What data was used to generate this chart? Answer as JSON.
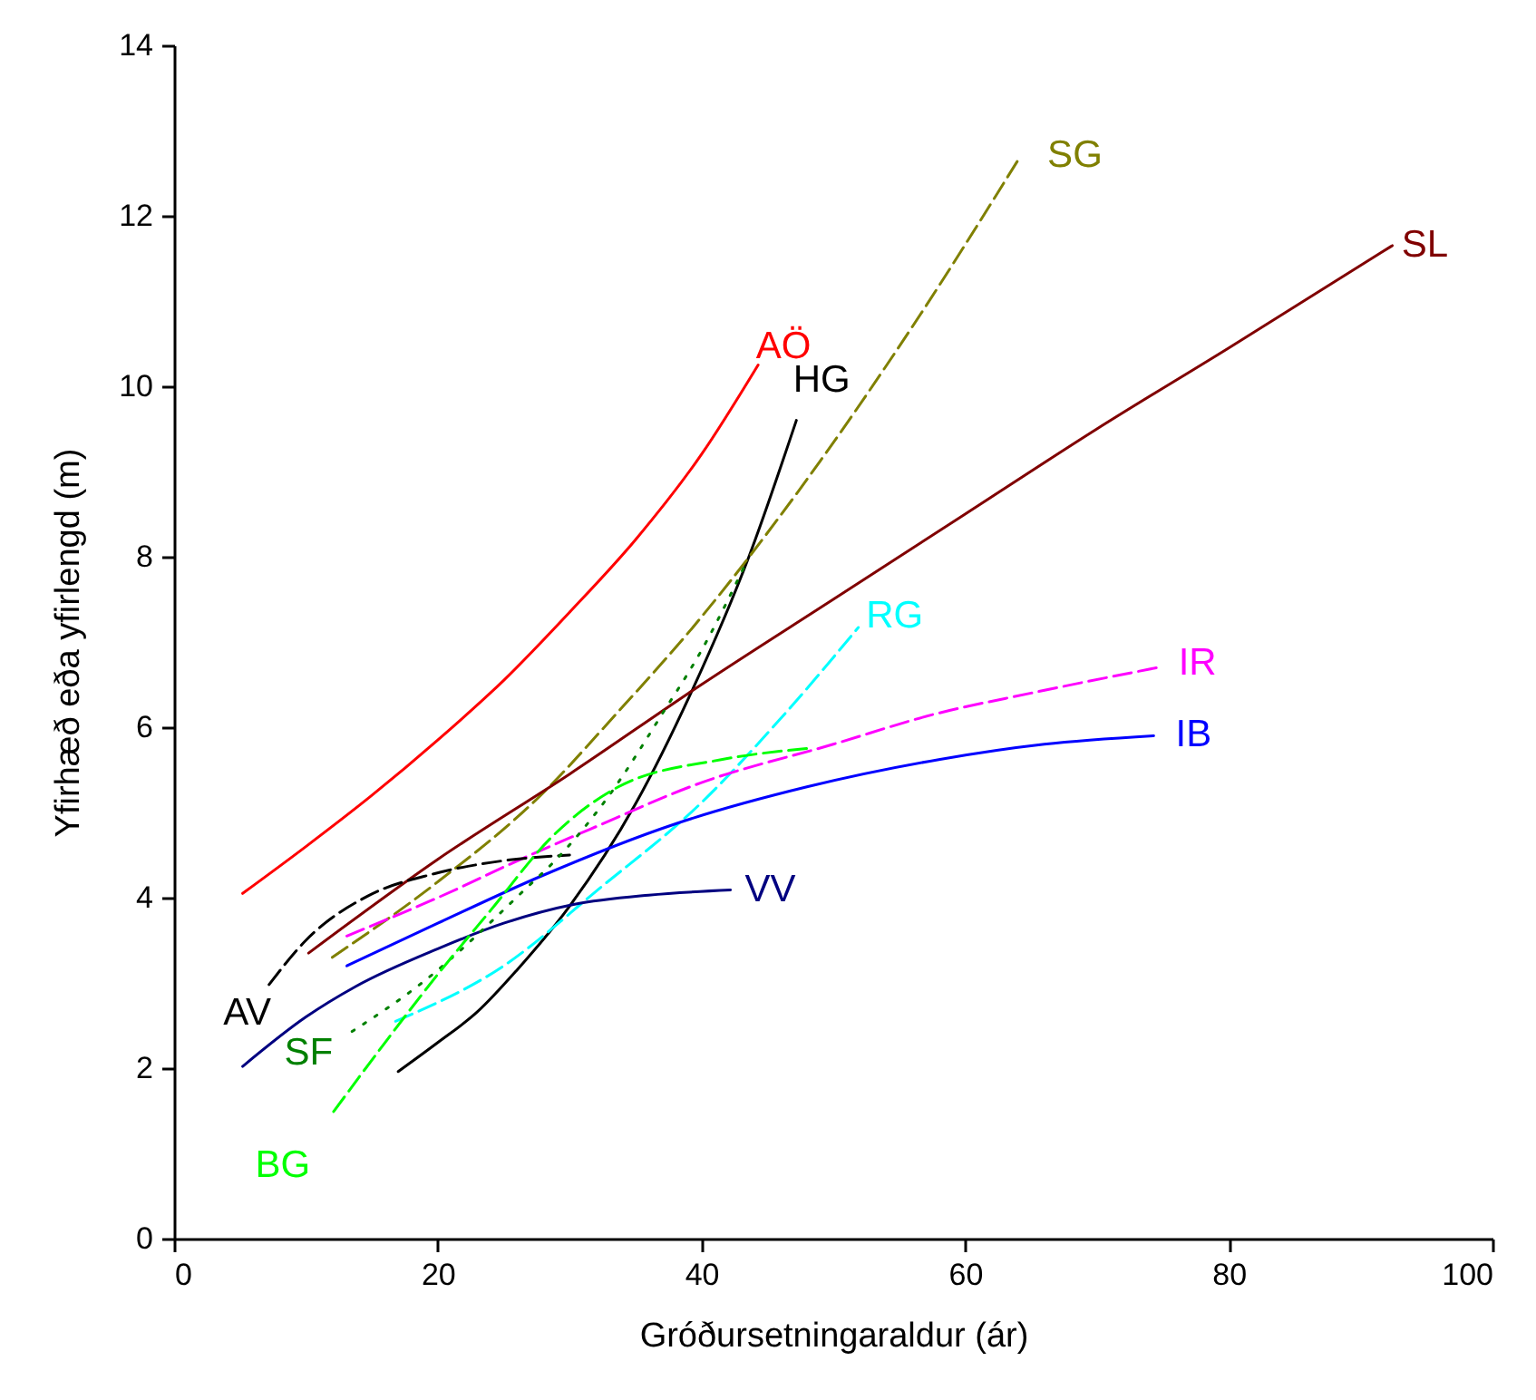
{
  "chart_data": {
    "type": "line",
    "xlabel": "Gróðursetningaraldur (ár)",
    "ylabel": "Yfirhæð eða yfirlengd (m)",
    "xlim": [
      0,
      100
    ],
    "xticks": [
      0,
      20,
      40,
      60,
      80,
      100
    ],
    "ylim": [
      0,
      14
    ],
    "yticks": [
      0,
      2,
      4,
      6,
      8,
      10,
      12,
      14
    ],
    "marker": "none",
    "series": [
      {
        "name": "AÖ",
        "color": "#ff0000",
        "line_style": "solid",
        "x": [
          5.2,
          10,
          15,
          20,
          25,
          30,
          35,
          40,
          44.3
        ],
        "values": [
          4.05,
          4.6,
          5.2,
          5.85,
          6.55,
          7.35,
          8.2,
          9.2,
          10.25
        ]
      },
      {
        "name": "HG",
        "color": "#000000",
        "line_style": "solid",
        "x": [
          17,
          20,
          23,
          26,
          30,
          35,
          39.2,
          43.6,
          47.2
        ],
        "values": [
          1.96,
          2.3,
          2.66,
          3.15,
          3.9,
          5.1,
          6.4,
          8.0,
          9.6
        ]
      },
      {
        "name": "SG",
        "color": "#808000",
        "line_style": "dashed",
        "x": [
          12,
          19.7,
          27.8,
          33.5,
          39.5,
          47.5,
          56,
          64.2
        ],
        "values": [
          3.3,
          4.15,
          5.2,
          6.15,
          7.2,
          8.8,
          10.7,
          12.7
        ]
      },
      {
        "name": "SL",
        "color": "#800000",
        "line_style": "solid",
        "x": [
          10.2,
          20,
          30,
          40,
          50,
          60,
          70,
          80,
          92.4
        ],
        "values": [
          3.35,
          4.45,
          5.45,
          6.5,
          7.5,
          8.5,
          9.5,
          10.45,
          11.65
        ]
      },
      {
        "name": "RG",
        "color": "#00ffff",
        "line_style": "dashed",
        "x": [
          16.8,
          25,
          32.2,
          39.9,
          46,
          51.9
        ],
        "values": [
          2.55,
          3.2,
          4.1,
          5.1,
          6.1,
          7.17
        ]
      },
      {
        "name": "IR",
        "color": "#ff00ff",
        "line_style": "dashed",
        "x": [
          13.1,
          20,
          27,
          31.5,
          40,
          50,
          57.6,
          65,
          74.6
        ],
        "values": [
          3.55,
          4.0,
          4.5,
          4.8,
          5.35,
          5.8,
          6.15,
          6.4,
          6.7
        ]
      },
      {
        "name": "IB",
        "color": "#0000ff",
        "line_style": "solid",
        "x": [
          13.1,
          20,
          27.8,
          38.1,
          48,
          58,
          66,
          74.3
        ],
        "values": [
          3.2,
          3.7,
          4.25,
          4.87,
          5.3,
          5.62,
          5.8,
          5.9
        ]
      },
      {
        "name": "VV",
        "color": "#000080",
        "line_style": "solid",
        "x": [
          5.2,
          10,
          13.8,
          20,
          25,
          30.3,
          36,
          42.2
        ],
        "values": [
          2.02,
          2.6,
          2.96,
          3.4,
          3.7,
          3.92,
          4.03,
          4.09
        ]
      },
      {
        "name": "AV",
        "color": "#000000",
        "line_style": "dashed",
        "x": [
          7.2,
          10,
          14.7,
          19.7,
          24.8,
          30
        ],
        "values": [
          2.98,
          3.5,
          4.02,
          4.28,
          4.43,
          4.5
        ]
      },
      {
        "name": "SF",
        "color": "#008000",
        "line_style": "dotted",
        "x": [
          13.5,
          18.8,
          26.5,
          29.3,
          33,
          37,
          40,
          43.3
        ],
        "values": [
          2.43,
          3.0,
          4.08,
          4.5,
          5.2,
          6.15,
          6.9,
          7.9
        ]
      },
      {
        "name": "BG",
        "color": "#00ff00",
        "line_style": "dashed",
        "x": [
          12.1,
          16,
          20,
          24,
          28.7,
          33.7,
          41.5,
          48
        ],
        "values": [
          1.49,
          2.3,
          3.1,
          3.85,
          4.72,
          5.3,
          5.62,
          5.75
        ]
      }
    ]
  }
}
